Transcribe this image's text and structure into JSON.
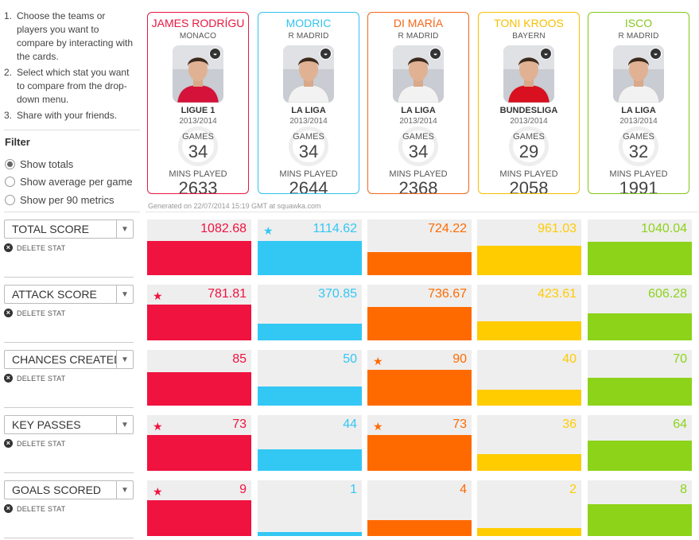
{
  "instructions": [
    {
      "num": "1.",
      "text": "Choose the teams or players you want to compare by interacting with the cards."
    },
    {
      "num": "2.",
      "text": "Select which stat you want to compare from the drop-down menu."
    },
    {
      "num": "3.",
      "text": "Share with your friends."
    }
  ],
  "filter": {
    "title": "Filter",
    "options": [
      {
        "label": "Show totals",
        "checked": true
      },
      {
        "label": "Show average per game",
        "checked": false
      },
      {
        "label": "Show per 90 metrics",
        "checked": false
      }
    ]
  },
  "labels": {
    "games": "GAMES",
    "mins_played": "MINS PLAYED",
    "delete_stat": "DELETE STAT",
    "generated": "Generated on 22/07/2014 15:19 GMT at squawka.com"
  },
  "colors": {
    "red": "#f0123f",
    "blue": "#33c7f4",
    "orange": "#ff6a00",
    "yellow": "#ffcc00",
    "green": "#8cd31a"
  },
  "players": [
    {
      "name": "JAMES RODRÍGU",
      "club": "MONACO",
      "league": "LIGUE 1",
      "season": "2013/2014",
      "games": "34",
      "mins": "2633",
      "color": "#e8173f",
      "shirt": "#d4123a"
    },
    {
      "name": "MODRIC",
      "club": "R MADRID",
      "league": "LA LIGA",
      "season": "2013/2014",
      "games": "34",
      "mins": "2644",
      "color": "#33c2ef",
      "shirt": "#f2f2f2"
    },
    {
      "name": "DI MARÍA",
      "club": "R MADRID",
      "league": "LA LIGA",
      "season": "2013/2014",
      "games": "34",
      "mins": "2368",
      "color": "#f2671a",
      "shirt": "#f2f2f2"
    },
    {
      "name": "TONI KROOS",
      "club": "BAYERN",
      "league": "BUNDESLIGA",
      "season": "2013/2014",
      "games": "29",
      "mins": "2058",
      "color": "#f5c000",
      "shirt": "#d81020"
    },
    {
      "name": "ISCO",
      "club": "R MADRID",
      "league": "LA LIGA",
      "season": "2013/2014",
      "games": "32",
      "mins": "1991",
      "color": "#84c61c",
      "shirt": "#f2f2f2"
    }
  ],
  "stats": [
    {
      "label": "TOTAL SCORE",
      "values": [
        "1082.68",
        "1114.62",
        "724.22",
        "961.03",
        "1040.04"
      ],
      "fill": [
        0.62,
        0.62,
        0.42,
        0.53,
        0.6
      ],
      "star": [
        false,
        true,
        false,
        false,
        false
      ]
    },
    {
      "label": "ATTACK SCORE",
      "values": [
        "781.81",
        "370.85",
        "736.67",
        "423.61",
        "606.28"
      ],
      "fill": [
        0.64,
        0.3,
        0.6,
        0.34,
        0.49
      ],
      "star": [
        true,
        false,
        false,
        false,
        false
      ]
    },
    {
      "label": "CHANCES CREATED",
      "values": [
        "85",
        "50",
        "90",
        "40",
        "70"
      ],
      "fill": [
        0.6,
        0.34,
        0.64,
        0.28,
        0.5
      ],
      "star": [
        false,
        false,
        true,
        false,
        false
      ]
    },
    {
      "label": "KEY PASSES",
      "values": [
        "73",
        "44",
        "73",
        "36",
        "64"
      ],
      "fill": [
        0.64,
        0.39,
        0.64,
        0.3,
        0.54
      ],
      "star": [
        true,
        false,
        true,
        false,
        false
      ]
    },
    {
      "label": "GOALS SCORED",
      "values": [
        "9",
        "1",
        "4",
        "2",
        "8"
      ],
      "fill": [
        0.64,
        0.07,
        0.28,
        0.14,
        0.57
      ],
      "star": [
        true,
        false,
        false,
        false,
        false
      ]
    }
  ]
}
